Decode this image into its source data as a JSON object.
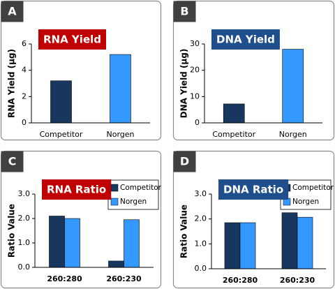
{
  "chart_data": [
    {
      "type": "bar",
      "panel": "A",
      "title": "RNA Yield",
      "title_color": "#c00000",
      "y_label": "RNA Yield (µg)",
      "categories": [
        "Competitor",
        "Norgen"
      ],
      "values": [
        3.2,
        5.2
      ],
      "colors": [
        "#17375e",
        "#3399ff"
      ],
      "ylim": [
        0,
        6
      ],
      "yticks": [
        0,
        2,
        4,
        6
      ]
    },
    {
      "type": "bar",
      "panel": "B",
      "title": "DNA Yield",
      "title_color": "#1f4e8c",
      "y_label": "DNA Yield (µg)",
      "categories": [
        "Competitor",
        "Norgen"
      ],
      "values": [
        7.2,
        28
      ],
      "colors": [
        "#17375e",
        "#3399ff"
      ],
      "ylim": [
        0,
        30
      ],
      "yticks": [
        0,
        10,
        20,
        30
      ]
    },
    {
      "type": "grouped-bar",
      "panel": "C",
      "title": "RNA Ratio",
      "title_color": "#c00000",
      "y_label": "Ratio Value",
      "categories": [
        "260:280",
        "260:230"
      ],
      "series": [
        {
          "name": "Competitor",
          "color": "#17375e",
          "values": [
            2.1,
            0.26
          ]
        },
        {
          "name": "Norgen",
          "color": "#3399ff",
          "values": [
            2.0,
            1.95
          ]
        }
      ],
      "legend": "top-right",
      "ylim": [
        0,
        3
      ],
      "yticks": [
        {
          "value": 0,
          "label": "0.0"
        },
        {
          "value": 1,
          "label": "1.0"
        },
        {
          "value": 2,
          "label": "2.0"
        },
        {
          "value": 3,
          "label": "3.0"
        }
      ]
    },
    {
      "type": "grouped-bar",
      "panel": "D",
      "title": "DNA Ratio",
      "title_color": "#1f4e8c",
      "y_label": "Ratio Value",
      "categories": [
        "260:280",
        "260:230"
      ],
      "series": [
        {
          "name": "Competitor",
          "color": "#17375e",
          "values": [
            1.85,
            2.25
          ]
        },
        {
          "name": "Norgen",
          "color": "#3399ff",
          "values": [
            1.85,
            2.07
          ]
        }
      ],
      "legend": "top-right",
      "ylim": [
        0,
        3
      ],
      "yticks": [
        {
          "value": 0,
          "label": "0.0"
        },
        {
          "value": 1,
          "label": "1.0"
        },
        {
          "value": 2,
          "label": "2.0"
        },
        {
          "value": 3,
          "label": "3.0"
        }
      ]
    }
  ]
}
